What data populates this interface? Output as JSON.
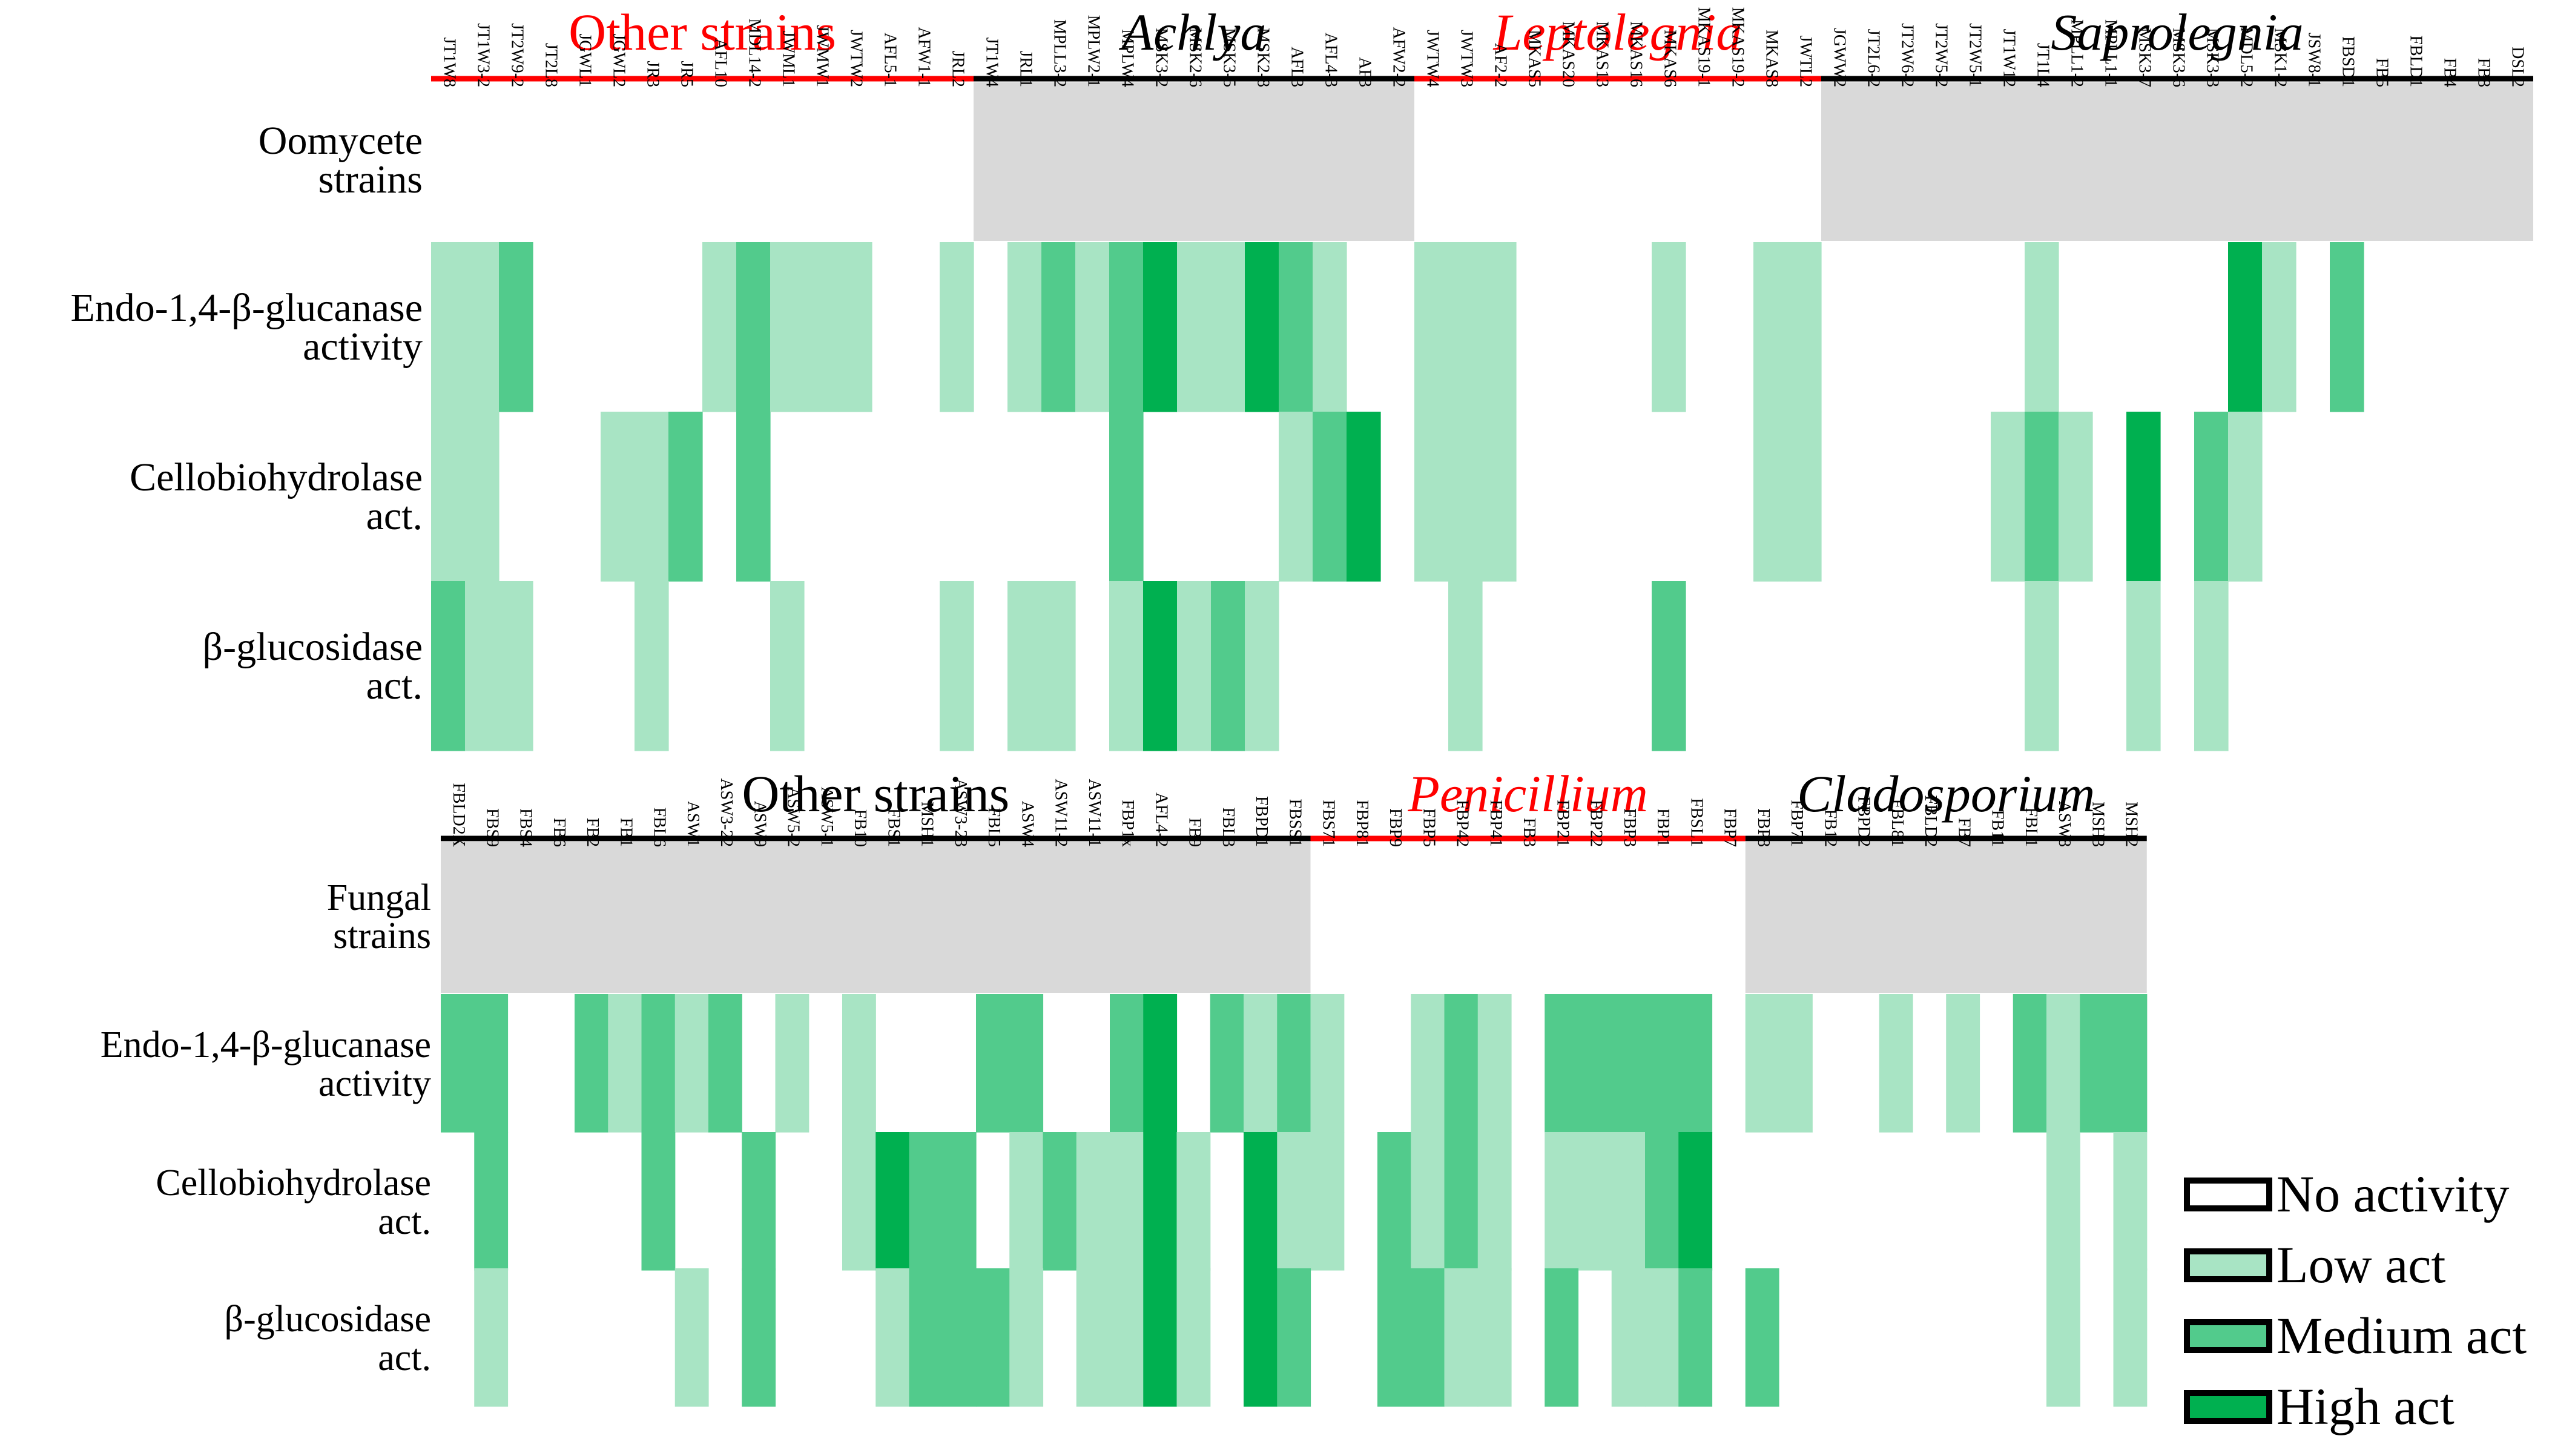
{
  "colors": {
    "none": "#ffffff",
    "low": "#a8e4c4",
    "medium": "#52cb8c",
    "high": "#00b050",
    "header_shade": "#d9d9d9",
    "red": "#ff0000",
    "black": "#000000"
  },
  "legend": [
    {
      "level": 0,
      "label": "No activity"
    },
    {
      "level": 1,
      "label": "Low act"
    },
    {
      "level": 2,
      "label": "Medium act"
    },
    {
      "level": 3,
      "label": "High act"
    }
  ],
  "chart_data": [
    {
      "type": "heatmap",
      "title": "Oomycete strains",
      "row_header_label": [
        "Oomycete",
        "strains"
      ],
      "value_scale": {
        "0": "No activity",
        "1": "Low act",
        "2": "Medium act",
        "3": "High act"
      },
      "rows": [
        {
          "label": [
            "Endo-1,4-β-glucanase",
            "activity"
          ]
        },
        {
          "label": [
            "Cellobiohydrolase",
            "act."
          ]
        },
        {
          "label": [
            "β-glucosidase",
            "act."
          ]
        }
      ],
      "groups": [
        {
          "name": "Other strains",
          "italic": false,
          "color": "red",
          "shaded": false,
          "strains": [
            "JT1W8",
            "JT1W3-2",
            "JT2W9-2",
            "JT2L8",
            "JGWL1",
            "JGWL2",
            "JR3",
            "JR5",
            "AFL10",
            "MDL14-2",
            "JWML1",
            "JWMW1",
            "JWTW2",
            "AFL5-1",
            "AFW1-1",
            "JRL2"
          ]
        },
        {
          "name": "Achlya",
          "italic": true,
          "color": "black",
          "shaded": true,
          "strains": [
            "JT1W4",
            "JRL1",
            "MPLL3-2",
            "MPLW2-1",
            "MPLW4",
            "MSK3-2",
            "MSK2-6",
            "MSK3-5",
            "MSK2-8",
            "AFL3",
            "AFL4-3",
            "AF3",
            "AFW2-2"
          ]
        },
        {
          "name": "Leptolegnia",
          "italic": true,
          "color": "red",
          "shaded": false,
          "strains": [
            "JWTW4",
            "JWTW3",
            "AF2-2",
            "MKAS5",
            "MKAS20",
            "MKAS13",
            "MKAS16",
            "MKAS6",
            "MKAS19-1",
            "MKAS19-2",
            "MKAS8",
            "JWTL2"
          ]
        },
        {
          "name": "Saprolegnia",
          "italic": true,
          "color": "black",
          "shaded": true,
          "strains": [
            "JGWW2",
            "JT2L6-2",
            "JT2W6-2",
            "JT2W5-2",
            "JT2W5-1",
            "JT1W12",
            "JT1L4",
            "MPLL1-2",
            "MPLL1-1",
            "MSK3-7",
            "MSK3-6",
            "MSK3-3",
            "MDL5-2",
            "MSK1-2",
            "JSW8-1",
            "FBSD1",
            "FB5",
            "FBLD1",
            "FB4",
            "FB8",
            "DSL2"
          ]
        }
      ],
      "values": [
        [
          1,
          1,
          2,
          0,
          0,
          0,
          0,
          0,
          1,
          2,
          1,
          1,
          1,
          0,
          0,
          1,
          0,
          1,
          2,
          1,
          2,
          3,
          1,
          1,
          3,
          2,
          1,
          0,
          0,
          1,
          1,
          1,
          0,
          0,
          0,
          0,
          1,
          0,
          0,
          1,
          1,
          0,
          0,
          0,
          0,
          0,
          0,
          1,
          0,
          0,
          0,
          0,
          0,
          3,
          1,
          0,
          2,
          0,
          0,
          0,
          0,
          0
        ],
        [
          1,
          1,
          0,
          0,
          0,
          1,
          1,
          2,
          0,
          2,
          0,
          0,
          0,
          0,
          0,
          0,
          0,
          0,
          0,
          0,
          2,
          0,
          0,
          0,
          0,
          1,
          2,
          3,
          0,
          1,
          1,
          1,
          0,
          0,
          0,
          0,
          0,
          0,
          0,
          1,
          1,
          0,
          0,
          0,
          0,
          0,
          1,
          2,
          1,
          0,
          3,
          0,
          2,
          1,
          0,
          0,
          0,
          0,
          0,
          0,
          0,
          0
        ],
        [
          2,
          1,
          1,
          0,
          0,
          0,
          1,
          0,
          0,
          0,
          1,
          0,
          0,
          0,
          0,
          1,
          0,
          1,
          1,
          0,
          1,
          3,
          1,
          2,
          1,
          0,
          0,
          0,
          0,
          0,
          1,
          0,
          0,
          0,
          0,
          0,
          2,
          0,
          0,
          0,
          0,
          0,
          0,
          0,
          0,
          0,
          0,
          1,
          0,
          0,
          1,
          0,
          1,
          0,
          0,
          0,
          0,
          0,
          0,
          0,
          0,
          0
        ]
      ]
    },
    {
      "type": "heatmap",
      "title": "Fungal strains",
      "row_header_label": [
        "Fungal",
        "strains"
      ],
      "value_scale": {
        "0": "No activity",
        "1": "Low act",
        "2": "Medium act",
        "3": "High act"
      },
      "rows": [
        {
          "label": [
            "Endo-1,4-β-glucanase",
            "activity"
          ]
        },
        {
          "label": [
            "Cellobiohydrolase",
            "act."
          ]
        },
        {
          "label": [
            "β-glucosidase",
            "act."
          ]
        }
      ],
      "groups": [
        {
          "name": "Other strains",
          "italic": false,
          "color": "black",
          "shaded": true,
          "strains": [
            "FBLD2X",
            "FBS9",
            "FBS4",
            "FB6",
            "FB2",
            "FB1",
            "FBL6",
            "ASW1",
            "ASW3-22",
            "ASW9",
            "ASW5-2",
            "ASW5-1",
            "FB10",
            "FBS1",
            "MSH1",
            "ASW3-23",
            "FBL5",
            "ASW4",
            "ASW11-2",
            "ASW11-1",
            "FBP1x",
            "AFL4-2",
            "FB9",
            "FBL3",
            "FBPD1",
            "FBSS1"
          ]
        },
        {
          "name": "Penicillium",
          "italic": true,
          "color": "red",
          "shaded": false,
          "strains": [
            "FBS71",
            "FBP81",
            "FBP9",
            "FBP5",
            "FBP42",
            "FBP41",
            "FB3",
            "FBP21",
            "FBP22",
            "FBP3",
            "FBP1",
            "FBSL1",
            "FBP7"
          ]
        },
        {
          "name": "Cladosporium",
          "italic": true,
          "color": "black",
          "shaded": true,
          "strains": [
            "FBP8",
            "FBP71",
            "FB12",
            "FBPD2",
            "FBL81",
            "FBLD2",
            "FB7",
            "FB11",
            "FBL1",
            "ASW8",
            "MSH3",
            "MSH2"
          ]
        }
      ],
      "values": [
        [
          2,
          2,
          0,
          0,
          2,
          1,
          2,
          1,
          2,
          0,
          1,
          0,
          1,
          0,
          0,
          0,
          2,
          2,
          0,
          0,
          2,
          3,
          0,
          2,
          1,
          2,
          1,
          0,
          0,
          1,
          2,
          1,
          0,
          2,
          2,
          2,
          2,
          2,
          0,
          1,
          1,
          0,
          0,
          1,
          0,
          1,
          0,
          2,
          1,
          2,
          2
        ],
        [
          0,
          2,
          0,
          0,
          0,
          0,
          2,
          0,
          0,
          2,
          0,
          0,
          1,
          3,
          2,
          2,
          0,
          1,
          2,
          1,
          1,
          3,
          1,
          0,
          3,
          1,
          1,
          0,
          2,
          1,
          2,
          1,
          0,
          1,
          1,
          1,
          2,
          3,
          0,
          0,
          0,
          0,
          0,
          0,
          0,
          0,
          0,
          0,
          1,
          0,
          1
        ],
        [
          0,
          1,
          0,
          0,
          0,
          0,
          0,
          1,
          0,
          2,
          0,
          0,
          0,
          1,
          2,
          2,
          2,
          1,
          0,
          1,
          1,
          3,
          1,
          0,
          3,
          2,
          0,
          0,
          2,
          2,
          1,
          1,
          0,
          2,
          0,
          1,
          1,
          2,
          0,
          2,
          0,
          0,
          0,
          0,
          0,
          0,
          0,
          0,
          1,
          0,
          1
        ]
      ]
    }
  ]
}
